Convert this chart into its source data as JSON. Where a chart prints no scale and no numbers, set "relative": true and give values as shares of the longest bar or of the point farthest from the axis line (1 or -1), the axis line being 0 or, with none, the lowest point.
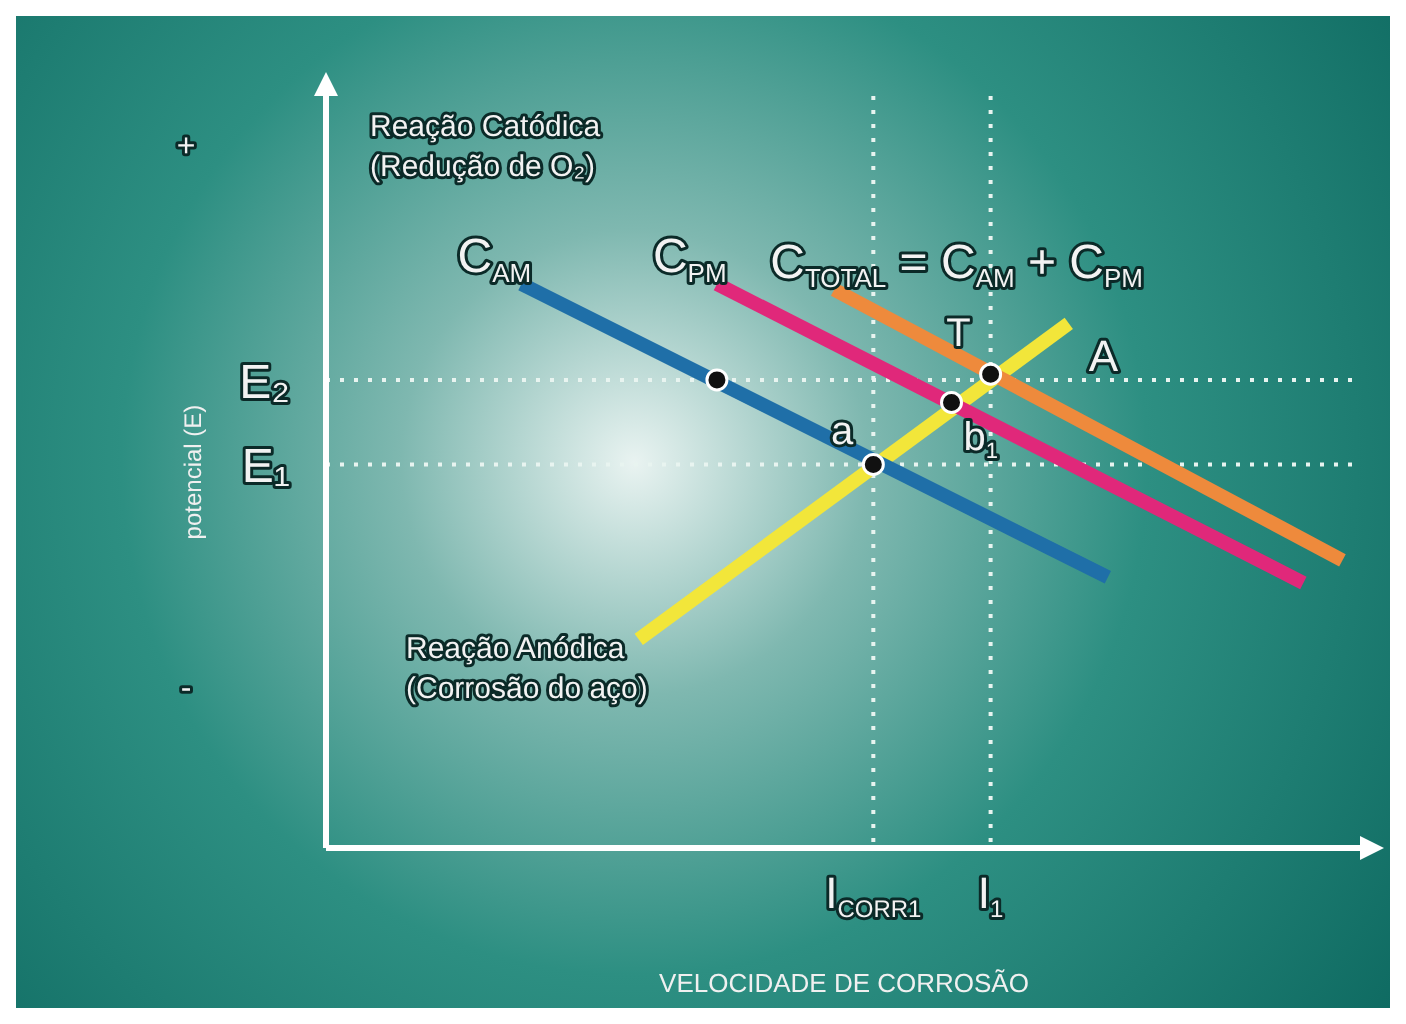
{
  "chart_data": {
    "type": "line",
    "xlabel": "VELOCIDADE DE CORROSÃO",
    "ylabel": "potencial (E)",
    "relative": true,
    "grid": "x",
    "legend": false,
    "marker": "none",
    "line_style": "solid",
    "categories": [
      null,
      null,
      null,
      null,
      null,
      null,
      null,
      null,
      null,
      null,
      null,
      null,
      null,
      null,
      "I$_{CORR1}$",
      null,
      null,
      "I$_{1}$",
      null,
      null,
      null,
      null,
      null,
      null,
      null,
      null,
      null
    ],
    "series": [
      {
        "name": "C$_{AM}$",
        "color": "#1f6fa8",
        "values": [
          null,
          null,
          null,
          null,
          null,
          1,
          null,
          null,
          null,
          null,
          null,
          null,
          null,
          null,
          null,
          null,
          null,
          null,
          null,
          null,
          0.48,
          null,
          null,
          null,
          null,
          null,
          null
        ]
      },
      {
        "name": "C$_{PM}$",
        "color": "#e0287a",
        "values": [
          null,
          null,
          null,
          null,
          null,
          null,
          null,
          null,
          null,
          null,
          1,
          null,
          null,
          null,
          null,
          null,
          null,
          null,
          null,
          null,
          null,
          null,
          null,
          null,
          null,
          0.47,
          null
        ]
      },
      {
        "name": "C$_{TOTAL}$ = C$_{AM}$ + C$_{PM}$",
        "color": "#ee8a3c",
        "values": [
          null,
          null,
          null,
          null,
          null,
          null,
          null,
          null,
          null,
          null,
          null,
          null,
          null,
          0.99,
          null,
          null,
          null,
          null,
          null,
          null,
          null,
          null,
          null,
          null,
          null,
          null,
          0.51
        ]
      },
      {
        "name": "A",
        "color": "#f2e63a",
        "values": [
          null,
          null,
          null,
          null,
          null,
          null,
          null,
          null,
          0.37,
          null,
          null,
          null,
          null,
          null,
          null,
          null,
          null,
          null,
          null,
          0.93,
          null,
          null,
          null,
          null,
          null,
          null,
          null
        ]
      },
      {
        "type": "scatter",
        "marker": "circle",
        "color": "#111111",
        "values": [
          null,
          null,
          null,
          null,
          null,
          null,
          null,
          null,
          null,
          null,
          0.83,
          null,
          null,
          null,
          0.68,
          null,
          0.79,
          0.84,
          null,
          null,
          null,
          null,
          null,
          null,
          null,
          null,
          null
        ]
      }
    ],
    "ref_lines": [
      {
        "axis": "y",
        "value": 0.83,
        "label": "E₂",
        "color": "#e8f4f0",
        "line_style": "dotted"
      },
      {
        "axis": "y",
        "value": 0.68,
        "label": "E₁",
        "color": "#e8f4f0",
        "line_style": "dotted"
      }
    ],
    "annotations": [
      "Reação Catódica\n(Redução de O₂)",
      "Reação Anódica\n(Corrosão do aço)",
      "+",
      "-",
      {
        "text": "a",
        "y": 0.68
      },
      {
        "text": "b$_{1}$",
        "y": 0.79
      },
      {
        "text": "T",
        "y": 0.84
      }
    ]
  }
}
